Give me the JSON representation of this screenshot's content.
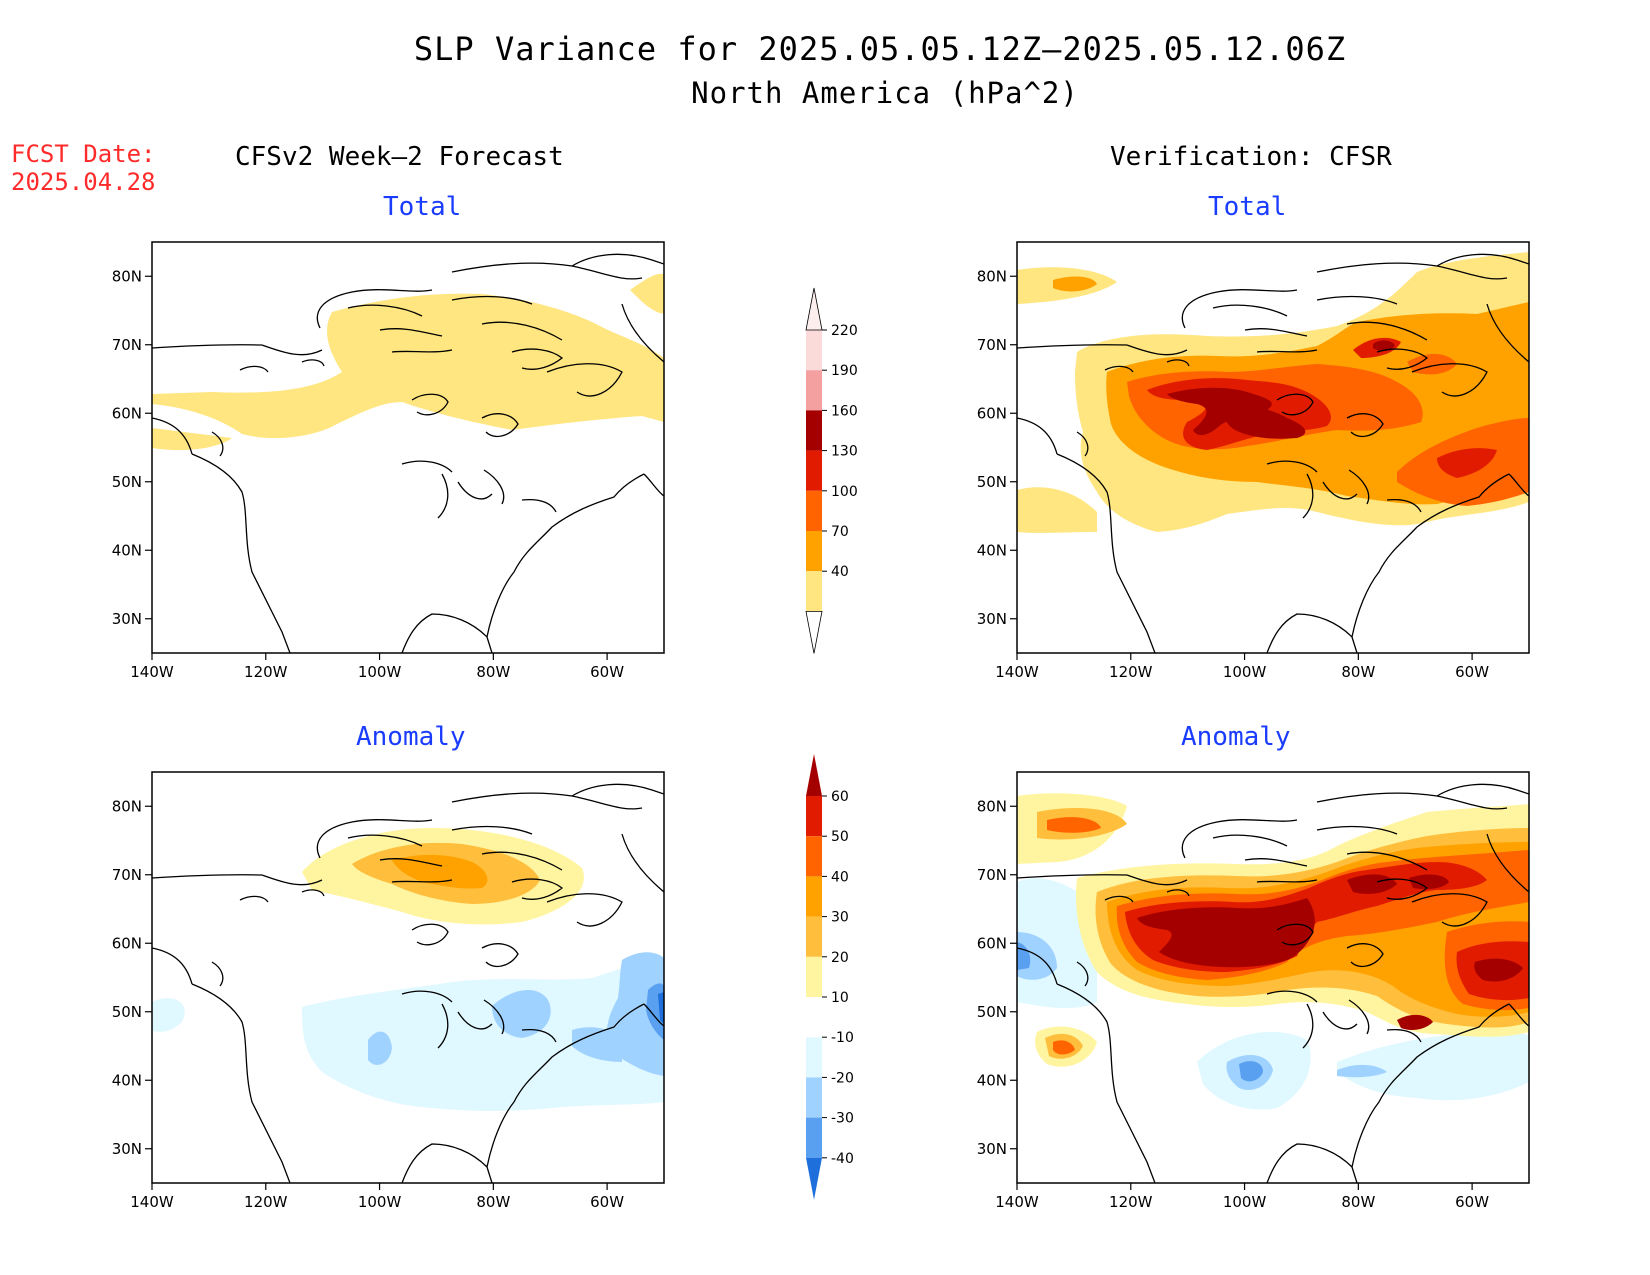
{
  "title": "SLP Variance for 2025.05.05.12Z–2025.05.12.06Z",
  "subtitle": "North America (hPa^2)",
  "forecast_info": {
    "label": "FCST Date:",
    "date": "2025.04.28"
  },
  "columns": {
    "left": "CFSv2 Week–2 Forecast",
    "right": "Verification: CFSR"
  },
  "panels": {
    "forecast_total": "Total",
    "forecast_anomaly": "Anomaly",
    "verification_total": "Total",
    "verification_anomaly": "Anomaly"
  },
  "map_axes": {
    "lon_labels": [
      "140W",
      "120W",
      "100W",
      "80W",
      "60W"
    ],
    "lon_values": [
      -140,
      -120,
      -100,
      -80,
      -60
    ],
    "lat_labels": [
      "80N",
      "70N",
      "60N",
      "50N",
      "40N",
      "30N"
    ],
    "lat_values": [
      80,
      70,
      60,
      50,
      40,
      30
    ],
    "lon_range": [
      -140,
      -50
    ],
    "lat_range": [
      25,
      85
    ]
  },
  "colorbars": {
    "total": {
      "levels": [
        "40",
        "70",
        "100",
        "130",
        "160",
        "190",
        "220"
      ],
      "colors": [
        "#ffe680",
        "#ffa200",
        "#ff6400",
        "#e11b00",
        "#a50000",
        "#f4a0a0",
        "#fbdada"
      ]
    },
    "anomaly": {
      "levels": [
        "60",
        "50",
        "40",
        "30",
        "20",
        "10",
        "-10",
        "-20",
        "-30",
        "-40"
      ],
      "colors": [
        "#a50000",
        "#e11b00",
        "#ff6400",
        "#ffa200",
        "#ffbe3c",
        "#fff5a0",
        "#ffffff",
        "#e0f8ff",
        "#a0d2ff",
        "#5aa0f0",
        "#1e6edc"
      ]
    }
  }
}
